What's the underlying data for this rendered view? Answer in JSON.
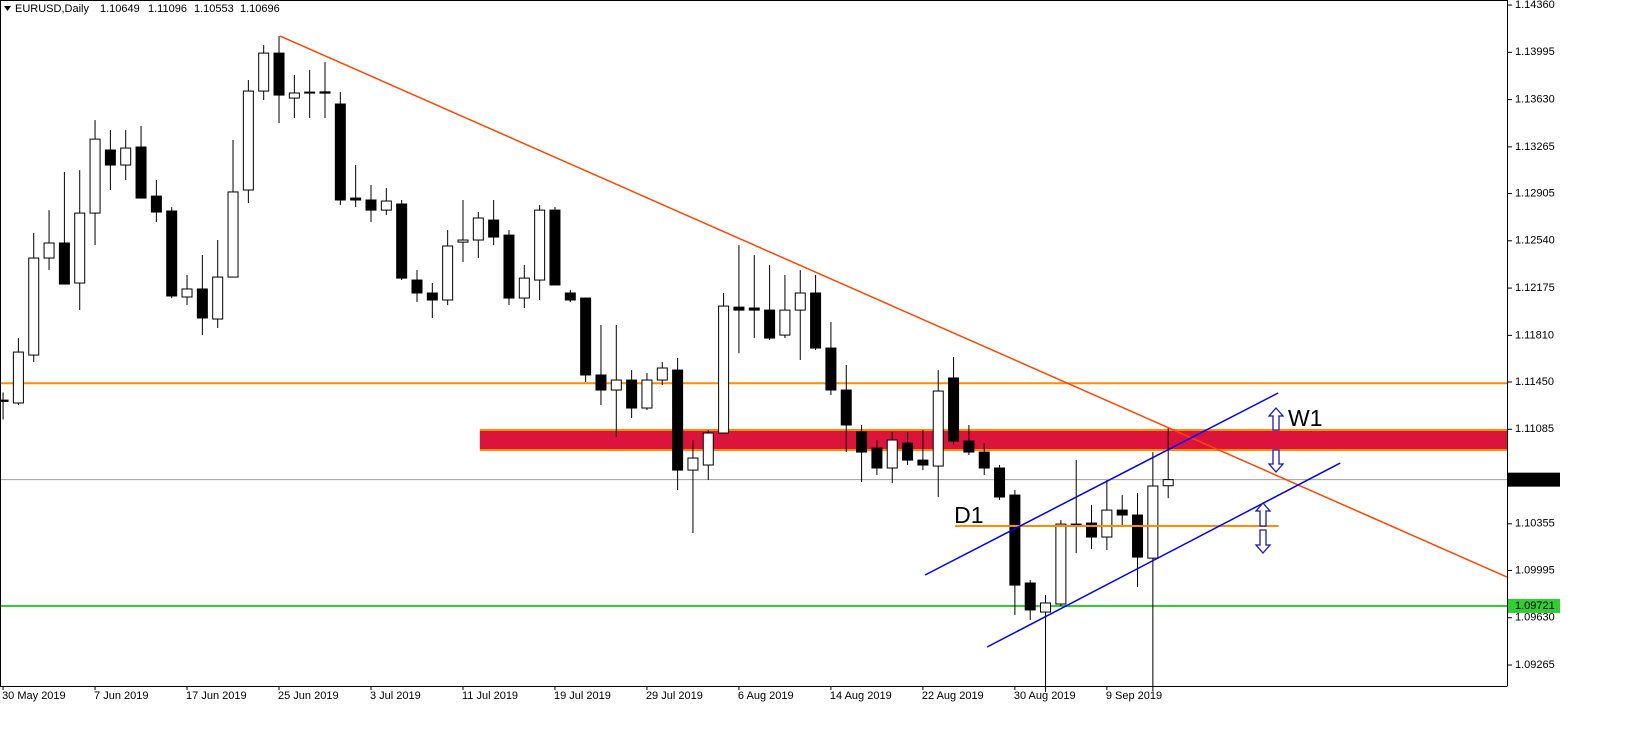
{
  "chart_data": {
    "type": "candlestick",
    "title": "EURUSD,Daily",
    "categories": [
      "30 May 2019",
      null,
      null,
      null,
      null,
      null,
      "7 Jun 2019",
      null,
      null,
      null,
      null,
      null,
      "17 Jun 2019",
      null,
      null,
      null,
      null,
      null,
      "25 Jun 2019",
      null,
      null,
      null,
      null,
      null,
      "3 Jul 2019",
      null,
      null,
      null,
      null,
      null,
      "11 Jul 2019",
      null,
      null,
      null,
      null,
      null,
      "19 Jul 2019",
      null,
      null,
      null,
      null,
      null,
      "29 Jul 2019",
      null,
      null,
      null,
      null,
      null,
      "6 Aug 2019",
      null,
      null,
      null,
      null,
      null,
      "14 Aug 2019",
      null,
      null,
      null,
      null,
      null,
      "22 Aug 2019",
      null,
      null,
      null,
      null,
      null,
      "30 Aug 2019",
      null,
      null,
      null,
      null,
      null,
      "9 Sep 2019",
      null,
      null,
      null,
      null
    ],
    "open": [
      1.1131,
      1.11288,
      1.11658,
      1.12407,
      1.12523,
      1.12214,
      1.12754,
      1.13241,
      1.13125,
      1.13264,
      1.12885,
      1.1277,
      1.12106,
      1.12168,
      1.11936,
      1.1226,
      1.12932,
      1.13696,
      1.13989,
      1.13642,
      1.13688,
      1.1369,
      1.13596,
      1.1287,
      1.12855,
      1.12777,
      1.12824,
      1.12237,
      1.12137,
      1.12083,
      1.1253,
      1.12546,
      1.127,
      1.12584,
      1.12098,
      1.12237,
      1.12777,
      1.12137,
      1.12098,
      1.11504,
      1.11388,
      1.11465,
      1.11249,
      1.11465,
      1.11542,
      1.1077,
      1.10809,
      1.11056,
      1.12028,
      1.12021,
      1.12005,
      1.11812,
      1.12005,
      1.12137,
      1.11712,
      1.11388,
      1.11064,
      1.1094,
      1.10786,
      1.10978,
      1.10847,
      1.10801,
      1.11481,
      1.10994,
      1.10909,
      1.10786,
      1.10577,
      1.09898,
      1.09674,
      1.09736,
      1.10353,
      1.10361,
      1.10253,
      1.10461,
      1.10423,
      1.1009,
      1.10649
    ],
    "high": [
      1.1137,
      1.11789,
      1.126,
      1.12777,
      1.13071,
      1.13086,
      1.13472,
      1.13395,
      1.13395,
      1.13426,
      1.13009,
      1.128,
      1.12276,
      1.1243,
      1.12546,
      1.13318,
      1.13781,
      1.14051,
      1.14121,
      1.1382,
      1.13858,
      1.1392,
      1.13688,
      1.13125,
      1.12971,
      1.12947,
      1.12855,
      1.12314,
      1.12214,
      1.12623,
      1.12855,
      1.12762,
      1.12855,
      1.12623,
      1.12353,
      1.12816,
      1.12801,
      1.1216,
      1.12098,
      1.1189,
      1.1189,
      1.11542,
      1.11519,
      1.11604,
      1.11635,
      1.11002,
      1.11079,
      1.12137,
      1.12507,
      1.1243,
      1.12353,
      1.12276,
      1.12314,
      1.12276,
      1.11913,
      1.11581,
      1.11118,
      1.11002,
      1.11064,
      1.11064,
      1.11079,
      1.11542,
      1.11643,
      1.11118,
      1.10979,
      1.10809,
      1.10616,
      1.09921,
      1.09805,
      1.10384,
      1.10848,
      1.105,
      1.10693,
      1.10577,
      1.10593,
      1.10909,
      1.11096
    ],
    "low": [
      1.1116,
      1.11272,
      1.11604,
      1.12314,
      1.12206,
      1.12006,
      1.12507,
      1.12932,
      1.13009,
      1.1287,
      1.12685,
      1.12098,
      1.12044,
      1.11812,
      1.11867,
      1.1226,
      1.12832,
      1.13627,
      1.13449,
      1.13488,
      1.13488,
      1.13488,
      1.12816,
      1.12801,
      1.12685,
      1.12739,
      1.12237,
      1.12067,
      1.11944,
      1.12044,
      1.12376,
      1.12407,
      1.12507,
      1.12044,
      1.12021,
      1.12083,
      1.12199,
      1.12067,
      1.1145,
      1.11272,
      1.11025,
      1.11172,
      1.11233,
      1.11427,
      1.10616,
      1.10284,
      1.10693,
      1.11056,
      1.11673,
      1.11789,
      1.11774,
      1.11789,
      1.1162,
      1.11697,
      1.11349,
      1.10909,
      1.10678,
      1.10732,
      1.1067,
      1.10809,
      1.1077,
      1.10562,
      1.10963,
      1.10886,
      1.10732,
      1.10539,
      1.09651,
      1.09612,
      1.09056,
      1.0972,
      1.10129,
      1.1016,
      1.10153,
      1.1033,
      1.09867,
      1.09064,
      1.10553
    ],
    "close": [
      1.113,
      1.11681,
      1.12407,
      1.12523,
      1.12206,
      1.12754,
      1.13325,
      1.13125,
      1.13256,
      1.1287,
      1.12762,
      1.12114,
      1.12168,
      1.11944,
      1.1226,
      1.12917,
      1.13696,
      1.13989,
      1.13665,
      1.13681,
      1.13681,
      1.1368,
      1.12855,
      1.12855,
      1.12777,
      1.12847,
      1.12252,
      1.12137,
      1.12083,
      1.125,
      1.12546,
      1.12716,
      1.12569,
      1.12098,
      1.12252,
      1.12777,
      1.12199,
      1.12083,
      1.11504,
      1.11388,
      1.11465,
      1.11249,
      1.11465,
      1.11558,
      1.1077,
      1.10863,
      1.11056,
      1.12036,
      1.12005,
      1.12005,
      1.11789,
      1.12005,
      1.12137,
      1.11712,
      1.11388,
      1.11118,
      1.10909,
      1.10786,
      1.11002,
      1.10847,
      1.10809,
      1.1138,
      1.10994,
      1.10909,
      1.10786,
      1.10562,
      1.09882,
      1.0969,
      1.09744,
      1.10353,
      1.10338,
      1.10253,
      1.10461,
      1.10423,
      1.10098,
      1.10647,
      1.10696
    ],
    "up_color": "#ffffff",
    "down_color": "#000000",
    "xlim": [
      -0.2,
      98.1
    ],
    "ylim": [
      1.09103,
      1.14399
    ],
    "yticks": [
      {
        "value": 1.1436,
        "label": "1.14360"
      },
      1.13995,
      {
        "value": 1.1363,
        "label": "1.13630"
      },
      1.13265,
      1.12905,
      {
        "value": 1.1254,
        "label": "1.12540"
      },
      1.12175,
      {
        "value": 1.1181,
        "label": "1.11810"
      },
      {
        "value": 1.1145,
        "label": "1.11450"
      },
      1.11085,
      1.10355,
      1.09995,
      {
        "value": 1.0963,
        "label": "1.09630"
      },
      1.09265
    ],
    "levels": [
      {
        "value": 1.1144,
        "color": "#ff8c00",
        "price_label": false
      },
      {
        "value": 1.09721,
        "color": "#32cd32",
        "price_label": true
      }
    ],
    "zone": {
      "name": "W1",
      "from": 1.10925,
      "to": 1.11079,
      "start": 31.1,
      "color": "#dc143c",
      "border_color": "#ff8c00"
    },
    "segments": [
      {
        "name": "D1",
        "value": 1.10338,
        "from": 62.1,
        "to": 83.2,
        "color": "#ff8c00"
      }
    ],
    "trendlines": [
      {
        "color": "#ff4500",
        "points": [
          {
            "x": 18.07,
            "y": 1.14121
          },
          {
            "x": 98.1,
            "y": 1.09944
          }
        ]
      },
      {
        "color": "#0000ff",
        "points": [
          {
            "x": 60.14,
            "y": 1.0996
          },
          {
            "x": 83.17,
            "y": 1.11365
          }
        ]
      },
      {
        "color": "#0000ff",
        "points": [
          {
            "x": 64.19,
            "y": 1.09404
          },
          {
            "x": 87.22,
            "y": 1.10824
          }
        ]
      }
    ]
  }
}
